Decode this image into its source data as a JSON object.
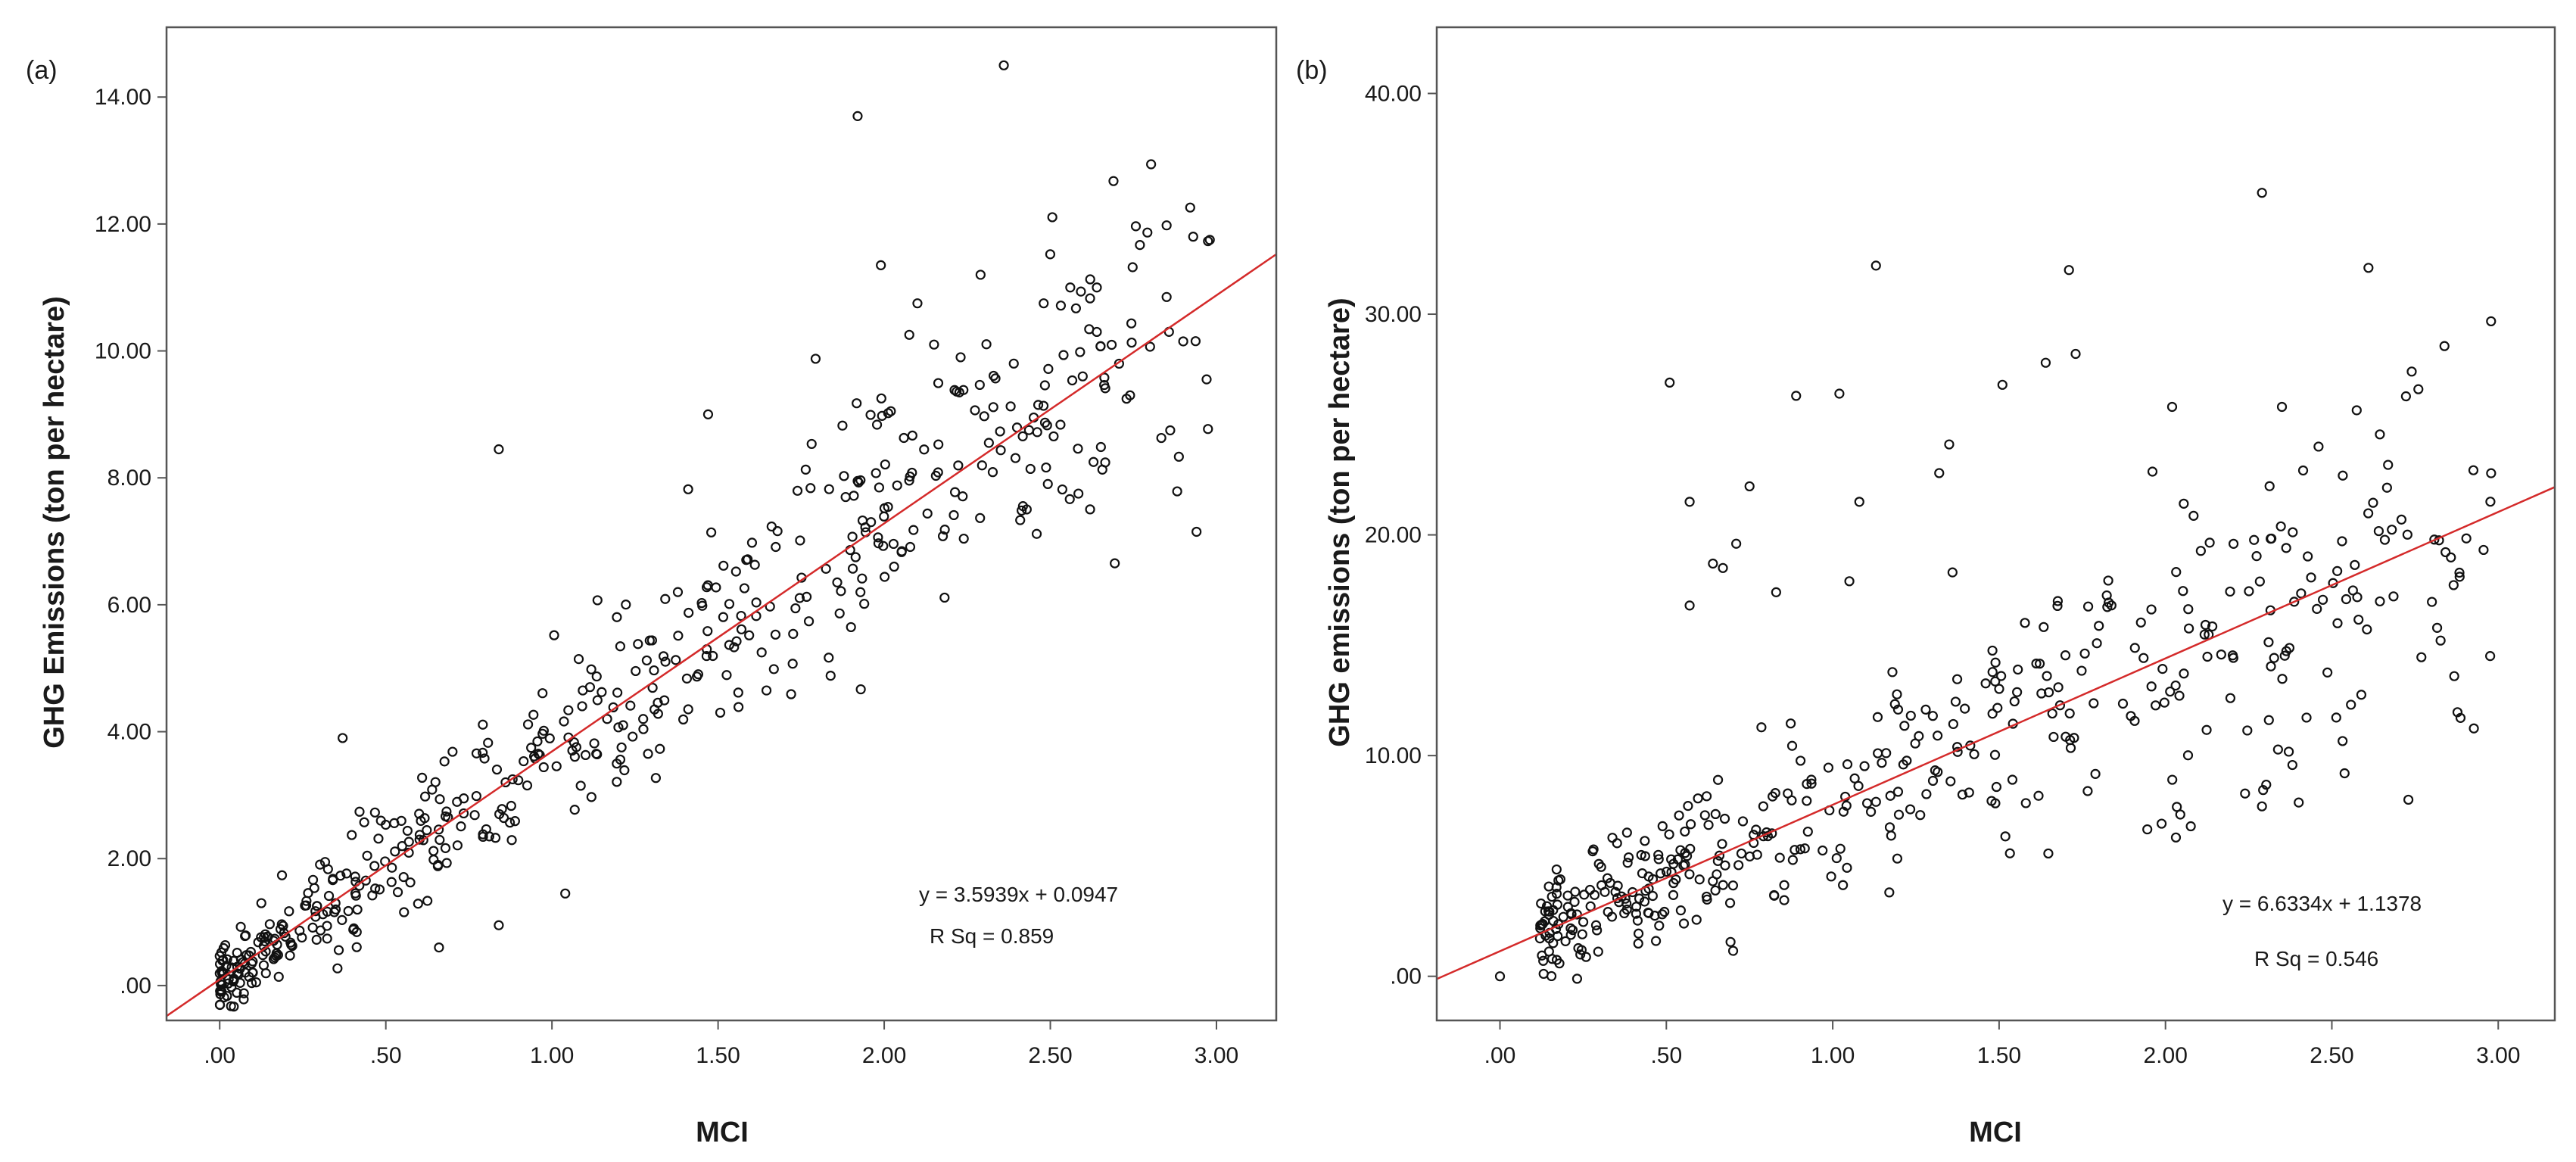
{
  "chart_data": [
    {
      "type": "scatter",
      "panel_label": "(a)",
      "xlabel": "MCI",
      "ylabel": "GHG Emissions (ton per hectare)",
      "xlim": [
        -0.16,
        3.18
      ],
      "ylim": [
        -0.55,
        15.1
      ],
      "x_ticks": [
        0,
        0.5,
        1,
        1.5,
        2,
        2.5,
        3
      ],
      "x_tick_labels": [
        ".00",
        ".50",
        "1.00",
        "1.50",
        "2.00",
        "2.50",
        "3.00"
      ],
      "y_ticks": [
        0,
        2,
        4,
        6,
        8,
        10,
        12,
        14
      ],
      "y_tick_labels": [
        ".00",
        "2.00",
        "4.00",
        "6.00",
        "8.00",
        "10.00",
        "12.00",
        "14.00"
      ],
      "fit": {
        "slope": 3.5939,
        "intercept": 0.0947
      },
      "equation_label": "y = 3.5939x + 0.0947",
      "r2_label": "R Sq  = 0.859",
      "n_points": 520,
      "x_extent": [
        0.0,
        2.98
      ],
      "residual_sd_base": 0.3,
      "residual_sd_per_x": 0.38,
      "outliers": [
        [
          2.36,
          14.5
        ],
        [
          1.92,
          13.7
        ],
        [
          2.93,
          11.8
        ],
        [
          2.98,
          11.75
        ],
        [
          1.99,
          11.35
        ],
        [
          2.29,
          11.2
        ],
        [
          2.56,
          11.0
        ],
        [
          2.64,
          11.0
        ],
        [
          2.85,
          10.85
        ],
        [
          2.1,
          10.75
        ],
        [
          2.48,
          10.75
        ],
        [
          2.15,
          10.1
        ],
        [
          2.9,
          10.15
        ],
        [
          2.23,
          9.9
        ],
        [
          2.39,
          9.8
        ],
        [
          2.74,
          9.3
        ],
        [
          2.02,
          9.05
        ],
        [
          1.47,
          9.0
        ],
        [
          2.45,
          8.95
        ],
        [
          0.84,
          8.45
        ],
        [
          2.63,
          8.25
        ],
        [
          2.94,
          7.15
        ],
        [
          1.04,
          1.45
        ],
        [
          0.66,
          0.6
        ],
        [
          0.84,
          0.95
        ],
        [
          0.37,
          3.9
        ]
      ]
    },
    {
      "type": "scatter",
      "panel_label": "(b)",
      "xlabel": "MCI",
      "ylabel": "GHG emissions (ton per hectare)",
      "xlim": [
        -0.19,
        3.17
      ],
      "ylim": [
        -2.0,
        43.0
      ],
      "x_ticks": [
        0,
        0.5,
        1,
        1.5,
        2,
        2.5,
        3
      ],
      "x_tick_labels": [
        ".00",
        ".50",
        "1.00",
        "1.50",
        "2.00",
        "2.50",
        "3.00"
      ],
      "y_ticks": [
        0,
        10,
        20,
        30,
        40
      ],
      "y_tick_labels": [
        ".00",
        "10.00",
        "20.00",
        "30.00",
        "40.00"
      ],
      "fit": {
        "slope": 6.6334,
        "intercept": 1.1378
      },
      "equation_label": "y = 6.6334x + 1.1378",
      "r2_label": "R Sq  = 0.546",
      "n_points": 440,
      "x_extent": [
        0.12,
        2.98
      ],
      "residual_sd_base": 0.9,
      "residual_sd_per_x": 1.4,
      "outliers": [
        [
          2.29,
          35.5
        ],
        [
          1.13,
          32.2
        ],
        [
          1.71,
          32.0
        ],
        [
          2.61,
          32.1
        ],
        [
          0.51,
          26.9
        ],
        [
          0.89,
          26.3
        ],
        [
          1.02,
          26.4
        ],
        [
          1.51,
          26.8
        ],
        [
          1.73,
          28.2
        ],
        [
          1.64,
          27.8
        ],
        [
          2.74,
          27.4
        ],
        [
          2.76,
          26.6
        ],
        [
          1.35,
          24.1
        ],
        [
          2.46,
          24.0
        ],
        [
          1.32,
          22.8
        ],
        [
          0.57,
          21.5
        ],
        [
          0.75,
          22.2
        ],
        [
          1.08,
          21.5
        ],
        [
          2.02,
          25.8
        ],
        [
          2.35,
          25.8
        ],
        [
          0.71,
          19.6
        ],
        [
          0.64,
          18.7
        ],
        [
          0.67,
          18.5
        ],
        [
          1.05,
          17.9
        ],
        [
          0.83,
          17.4
        ],
        [
          0.57,
          16.8
        ],
        [
          1.36,
          18.3
        ],
        [
          2.29,
          7.7
        ],
        [
          2.73,
          8.0
        ],
        [
          0.0,
          0.0
        ],
        [
          1.17,
          3.8
        ],
        [
          0.13,
          0.7
        ]
      ]
    }
  ]
}
